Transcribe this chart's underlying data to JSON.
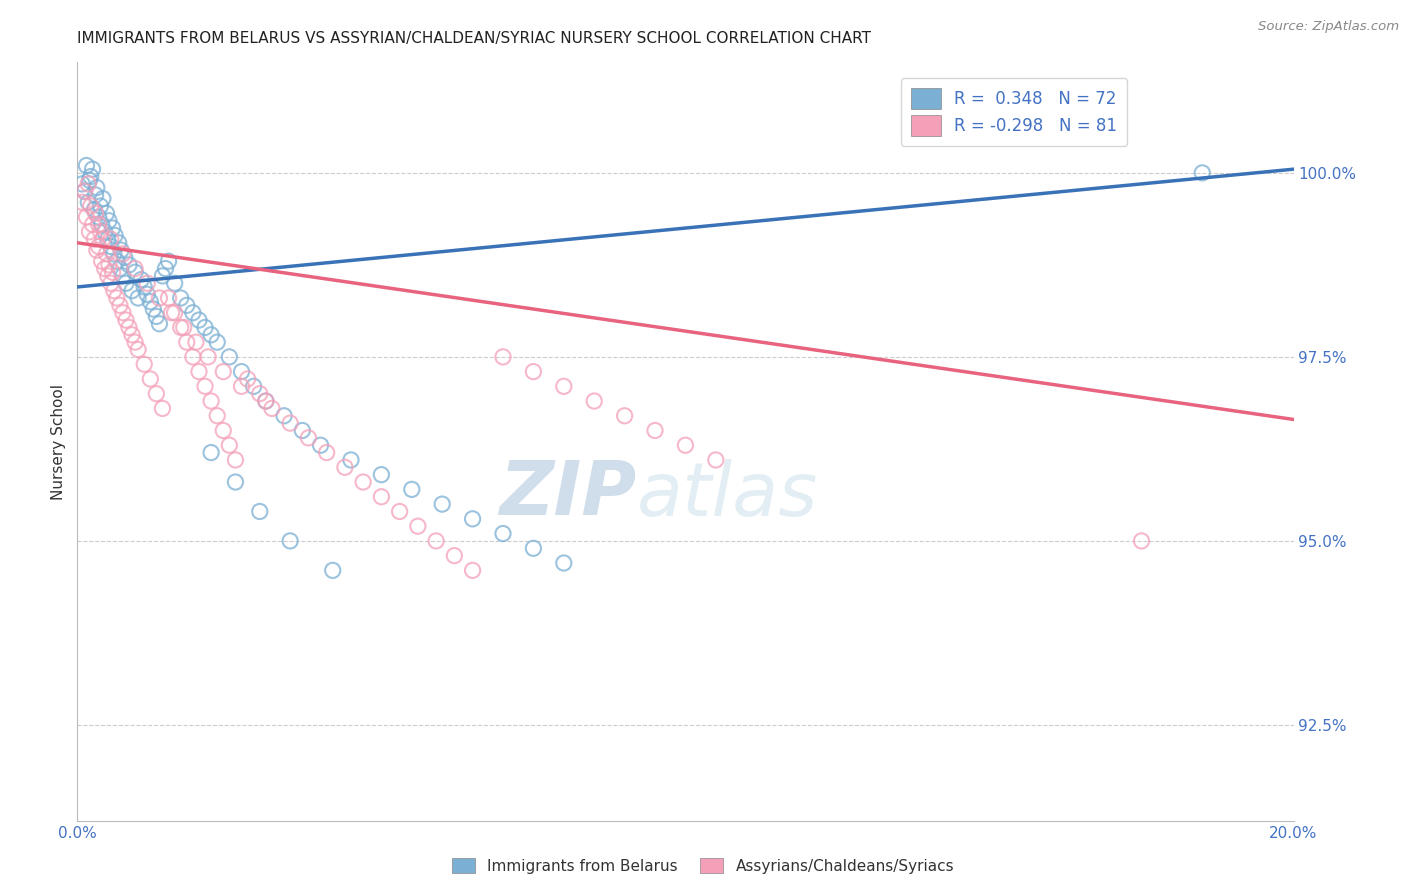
{
  "title": "IMMIGRANTS FROM BELARUS VS ASSYRIAN/CHALDEAN/SYRIAC NURSERY SCHOOL CORRELATION CHART",
  "source": "Source: ZipAtlas.com",
  "ylabel": "Nursery School",
  "ytick_labels": [
    "92.5%",
    "95.0%",
    "97.5%",
    "100.0%"
  ],
  "ytick_values": [
    92.5,
    95.0,
    97.5,
    100.0
  ],
  "xmin": 0.0,
  "xmax": 20.0,
  "ymin": 91.2,
  "ymax": 101.5,
  "legend_blue_label": "R =  0.348   N = 72",
  "legend_pink_label": "R = -0.298   N = 81",
  "legend_label_blue": "Immigrants from Belarus",
  "legend_label_pink": "Assyrians/Chaldeans/Syriacs",
  "blue_color": "#7bafd4",
  "pink_color": "#f4a0b8",
  "watermark_zip": "ZIP",
  "watermark_atlas": "atlas",
  "blue_trendline_x": [
    0.0,
    20.0
  ],
  "blue_trendline_y": [
    98.45,
    100.05
  ],
  "pink_trendline_x": [
    0.0,
    20.0
  ],
  "pink_trendline_y": [
    99.05,
    96.65
  ],
  "blue_scatter_x": [
    0.08,
    0.12,
    0.15,
    0.18,
    0.2,
    0.22,
    0.25,
    0.28,
    0.3,
    0.32,
    0.35,
    0.38,
    0.4,
    0.42,
    0.45,
    0.48,
    0.5,
    0.52,
    0.55,
    0.58,
    0.6,
    0.62,
    0.65,
    0.68,
    0.7,
    0.72,
    0.75,
    0.78,
    0.8,
    0.85,
    0.9,
    0.95,
    1.0,
    1.05,
    1.1,
    1.15,
    1.2,
    1.25,
    1.3,
    1.35,
    1.4,
    1.45,
    1.5,
    1.6,
    1.7,
    1.8,
    1.9,
    2.0,
    2.1,
    2.2,
    2.3,
    2.5,
    2.7,
    2.9,
    3.1,
    3.4,
    3.7,
    4.0,
    4.5,
    5.0,
    5.5,
    6.0,
    6.5,
    7.0,
    7.5,
    8.0,
    2.2,
    2.6,
    3.0,
    3.5,
    4.2,
    18.5
  ],
  "blue_scatter_y": [
    99.85,
    99.75,
    100.1,
    99.6,
    99.9,
    99.95,
    100.05,
    99.5,
    99.7,
    99.8,
    99.4,
    99.55,
    99.3,
    99.65,
    99.2,
    99.45,
    99.1,
    99.35,
    99.0,
    99.25,
    98.9,
    99.15,
    98.8,
    99.05,
    98.7,
    98.95,
    98.6,
    98.85,
    98.5,
    98.75,
    98.4,
    98.65,
    98.3,
    98.55,
    98.45,
    98.35,
    98.25,
    98.15,
    98.05,
    97.95,
    98.6,
    98.7,
    98.8,
    98.5,
    98.3,
    98.2,
    98.1,
    98.0,
    97.9,
    97.8,
    97.7,
    97.5,
    97.3,
    97.1,
    96.9,
    96.7,
    96.5,
    96.3,
    96.1,
    95.9,
    95.7,
    95.5,
    95.3,
    95.1,
    94.9,
    94.7,
    96.2,
    95.8,
    95.4,
    95.0,
    94.6,
    100.0
  ],
  "pink_scatter_x": [
    0.08,
    0.12,
    0.15,
    0.18,
    0.2,
    0.22,
    0.25,
    0.28,
    0.3,
    0.32,
    0.35,
    0.38,
    0.4,
    0.42,
    0.45,
    0.48,
    0.5,
    0.52,
    0.55,
    0.58,
    0.6,
    0.65,
    0.7,
    0.75,
    0.8,
    0.85,
    0.9,
    0.95,
    1.0,
    1.1,
    1.2,
    1.3,
    1.4,
    1.5,
    1.6,
    1.7,
    1.8,
    1.9,
    2.0,
    2.1,
    2.2,
    2.3,
    2.4,
    2.5,
    2.6,
    2.8,
    3.0,
    3.2,
    3.5,
    3.8,
    4.1,
    4.4,
    4.7,
    5.0,
    5.3,
    5.6,
    5.9,
    6.2,
    6.5,
    7.0,
    7.5,
    8.0,
    8.5,
    9.0,
    9.5,
    10.0,
    10.5,
    0.35,
    0.55,
    0.75,
    0.95,
    1.15,
    1.35,
    1.55,
    1.75,
    1.95,
    2.15,
    2.4,
    2.7,
    3.1,
    17.5
  ],
  "pink_scatter_y": [
    99.6,
    99.75,
    99.4,
    99.85,
    99.2,
    99.55,
    99.3,
    99.1,
    99.45,
    98.95,
    99.0,
    99.2,
    98.8,
    99.1,
    98.7,
    98.9,
    98.6,
    98.75,
    98.5,
    98.65,
    98.4,
    98.3,
    98.2,
    98.1,
    98.0,
    97.9,
    97.8,
    97.7,
    97.6,
    97.4,
    97.2,
    97.0,
    96.8,
    98.3,
    98.1,
    97.9,
    97.7,
    97.5,
    97.3,
    97.1,
    96.9,
    96.7,
    96.5,
    96.3,
    96.1,
    97.2,
    97.0,
    96.8,
    96.6,
    96.4,
    96.2,
    96.0,
    95.8,
    95.6,
    95.4,
    95.2,
    95.0,
    94.8,
    94.6,
    97.5,
    97.3,
    97.1,
    96.9,
    96.7,
    96.5,
    96.3,
    96.1,
    99.3,
    99.1,
    98.9,
    98.7,
    98.5,
    98.3,
    98.1,
    97.9,
    97.7,
    97.5,
    97.3,
    97.1,
    96.9,
    95.0
  ]
}
